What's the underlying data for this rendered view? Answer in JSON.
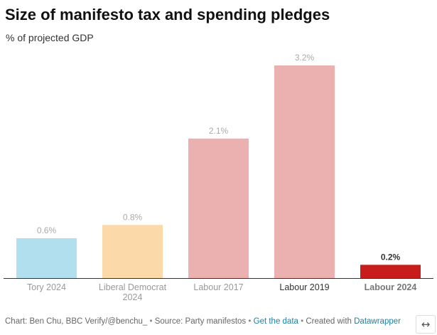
{
  "header": {
    "title": "Size of manifesto tax and spending pledges",
    "subtitle": "% of projected GDP"
  },
  "chart_data": {
    "type": "bar",
    "title": "Size of manifesto tax and spending pledges",
    "subtitle": "% of projected GDP",
    "xlabel": "",
    "ylabel": "",
    "unit": "%",
    "ylim": [
      0,
      3.2
    ],
    "grid": false,
    "legend": "none",
    "categories": [
      {
        "label_lines": [
          "Tory 2024"
        ],
        "value": 0.6,
        "value_label": "0.6%",
        "color": "#b2dfee",
        "label_color": "#999999",
        "value_color": "#aaaaaa",
        "bold": false
      },
      {
        "label_lines": [
          "Liberal Democrat",
          "2024"
        ],
        "value": 0.8,
        "value_label": "0.8%",
        "color": "#fcd9a8",
        "label_color": "#999999",
        "value_color": "#aaaaaa",
        "bold": false
      },
      {
        "label_lines": [
          "Labour 2017"
        ],
        "value": 2.1,
        "value_label": "2.1%",
        "color": "#ebb0b0",
        "label_color": "#999999",
        "value_color": "#aaaaaa",
        "bold": false
      },
      {
        "label_lines": [
          "Labour 2019"
        ],
        "value": 3.2,
        "value_label": "3.2%",
        "color": "#ebb0b0",
        "label_color": "#333333",
        "value_color": "#aaaaaa",
        "bold": false
      },
      {
        "label_lines": [
          "Labour 2024"
        ],
        "value": 0.2,
        "value_label": "0.2%",
        "color": "#c71e1d",
        "label_color": "#777777",
        "value_color": "#333333",
        "bold": true
      }
    ]
  },
  "footer": {
    "credit": "Chart: Ben Chu, BBC Verify/@benchu_",
    "separator": "•",
    "source": "Source: Party manifestos",
    "get_data": "Get the data",
    "created_with": "Created with",
    "datawrapper": "Datawrapper"
  },
  "controls": {
    "resize_icon": "↔"
  }
}
